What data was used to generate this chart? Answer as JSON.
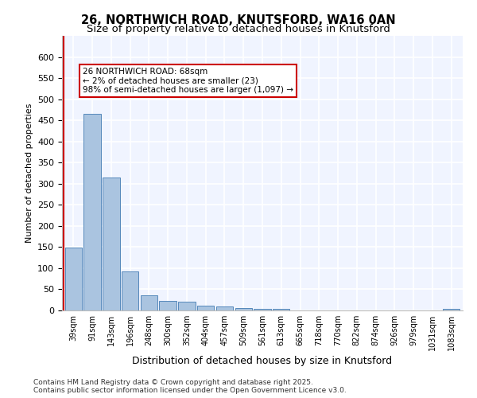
{
  "title_line1": "26, NORTHWICH ROAD, KNUTSFORD, WA16 0AN",
  "title_line2": "Size of property relative to detached houses in Knutsford",
  "xlabel": "Distribution of detached houses by size in Knutsford",
  "ylabel": "Number of detached properties",
  "categories": [
    "39sqm",
    "91sqm",
    "143sqm",
    "196sqm",
    "248sqm",
    "300sqm",
    "352sqm",
    "404sqm",
    "457sqm",
    "509sqm",
    "561sqm",
    "613sqm",
    "665sqm",
    "718sqm",
    "770sqm",
    "822sqm",
    "874sqm",
    "926sqm",
    "979sqm",
    "1031sqm",
    "1083sqm"
  ],
  "values": [
    148,
    465,
    315,
    93,
    36,
    23,
    20,
    11,
    9,
    5,
    4,
    4,
    0,
    0,
    0,
    0,
    0,
    0,
    0,
    0,
    3
  ],
  "bar_color": "#aac4e0",
  "bar_edge_color": "#5588bb",
  "reference_line_x": 0,
  "reference_line_color": "#cc0000",
  "annotation_text": "26 NORTHWICH ROAD: 68sqm\n← 2% of detached houses are smaller (23)\n98% of semi-detached houses are larger (1,097) →",
  "annotation_box_color": "#ffffff",
  "annotation_box_edge": "#cc0000",
  "background_color": "#f0f4ff",
  "grid_color": "#ffffff",
  "footer_text": "Contains HM Land Registry data © Crown copyright and database right 2025.\nContains public sector information licensed under the Open Government Licence v3.0.",
  "ylim_max": 650,
  "yticks": [
    0,
    50,
    100,
    150,
    200,
    250,
    300,
    350,
    400,
    450,
    500,
    550,
    600
  ]
}
